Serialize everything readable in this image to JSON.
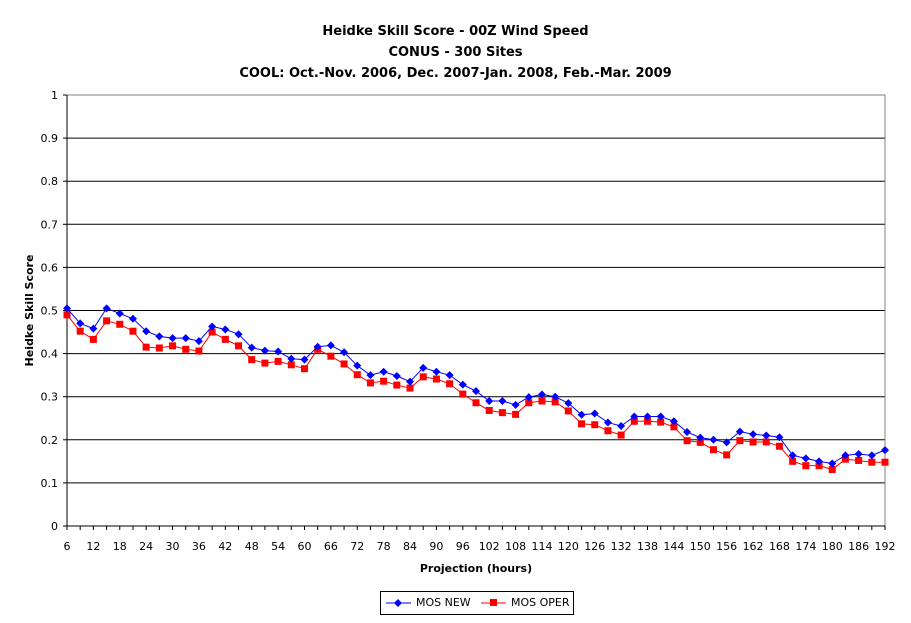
{
  "chart_data": {
    "type": "line",
    "title": "Heidke Skill Score - 00Z Wind Speed",
    "subtitle": "CONUS - 300 Sites",
    "subtitle2": "COOL: Oct.-Nov. 2006, Dec. 2007-Jan. 2008, Feb.-Mar. 2009",
    "xlabel": "Projection (hours)",
    "ylabel": "Heidke Skill Score",
    "ylim": [
      0,
      1
    ],
    "yticks": [
      0,
      0.1,
      0.2,
      0.3,
      0.4,
      0.5,
      0.6,
      0.7,
      0.8,
      0.9,
      1
    ],
    "xtick_labels": [
      "6",
      "12",
      "18",
      "24",
      "30",
      "36",
      "42",
      "48",
      "54",
      "60",
      "66",
      "72",
      "78",
      "84",
      "90",
      "96",
      "102",
      "108",
      "114",
      "120",
      "126",
      "132",
      "138",
      "144",
      "150",
      "156",
      "162",
      "168",
      "174",
      "180",
      "186",
      "192"
    ],
    "x": [
      6,
      9,
      12,
      15,
      18,
      21,
      24,
      27,
      30,
      33,
      36,
      39,
      42,
      45,
      48,
      51,
      54,
      57,
      60,
      63,
      66,
      69,
      72,
      75,
      78,
      81,
      84,
      87,
      90,
      93,
      96,
      99,
      102,
      105,
      108,
      111,
      114,
      117,
      120,
      123,
      126,
      129,
      132,
      135,
      138,
      141,
      144,
      147,
      150,
      153,
      156,
      159,
      162,
      165,
      168,
      171,
      174,
      177,
      180,
      183,
      186,
      189,
      192
    ],
    "grid": "horizontal",
    "legend_position": "bottom",
    "series": [
      {
        "name": "MOS NEW",
        "color": "#0000ff",
        "marker": "diamond",
        "values": [
          0.505,
          0.47,
          0.458,
          0.505,
          0.493,
          0.481,
          0.452,
          0.44,
          0.436,
          0.436,
          0.429,
          0.463,
          0.456,
          0.445,
          0.414,
          0.407,
          0.405,
          0.388,
          0.386,
          0.416,
          0.419,
          0.403,
          0.372,
          0.35,
          0.358,
          0.348,
          0.335,
          0.367,
          0.358,
          0.35,
          0.328,
          0.313,
          0.29,
          0.29,
          0.281,
          0.299,
          0.305,
          0.3,
          0.285,
          0.258,
          0.261,
          0.24,
          0.232,
          0.254,
          0.254,
          0.254,
          0.243,
          0.218,
          0.205,
          0.2,
          0.194,
          0.219,
          0.213,
          0.21,
          0.206,
          0.164,
          0.157,
          0.15,
          0.145,
          0.164,
          0.167,
          0.164,
          0.176
        ]
      },
      {
        "name": "MOS OPER",
        "color": "#ff0000",
        "marker": "square",
        "values": [
          0.49,
          0.452,
          0.433,
          0.476,
          0.468,
          0.452,
          0.415,
          0.413,
          0.418,
          0.41,
          0.406,
          0.45,
          0.433,
          0.418,
          0.386,
          0.378,
          0.382,
          0.374,
          0.365,
          0.41,
          0.394,
          0.376,
          0.351,
          0.332,
          0.336,
          0.327,
          0.32,
          0.346,
          0.341,
          0.33,
          0.306,
          0.286,
          0.268,
          0.263,
          0.259,
          0.286,
          0.29,
          0.288,
          0.267,
          0.237,
          0.235,
          0.221,
          0.211,
          0.243,
          0.243,
          0.241,
          0.23,
          0.198,
          0.194,
          0.177,
          0.165,
          0.198,
          0.195,
          0.195,
          0.185,
          0.15,
          0.14,
          0.14,
          0.131,
          0.155,
          0.152,
          0.148,
          0.148
        ]
      }
    ]
  }
}
